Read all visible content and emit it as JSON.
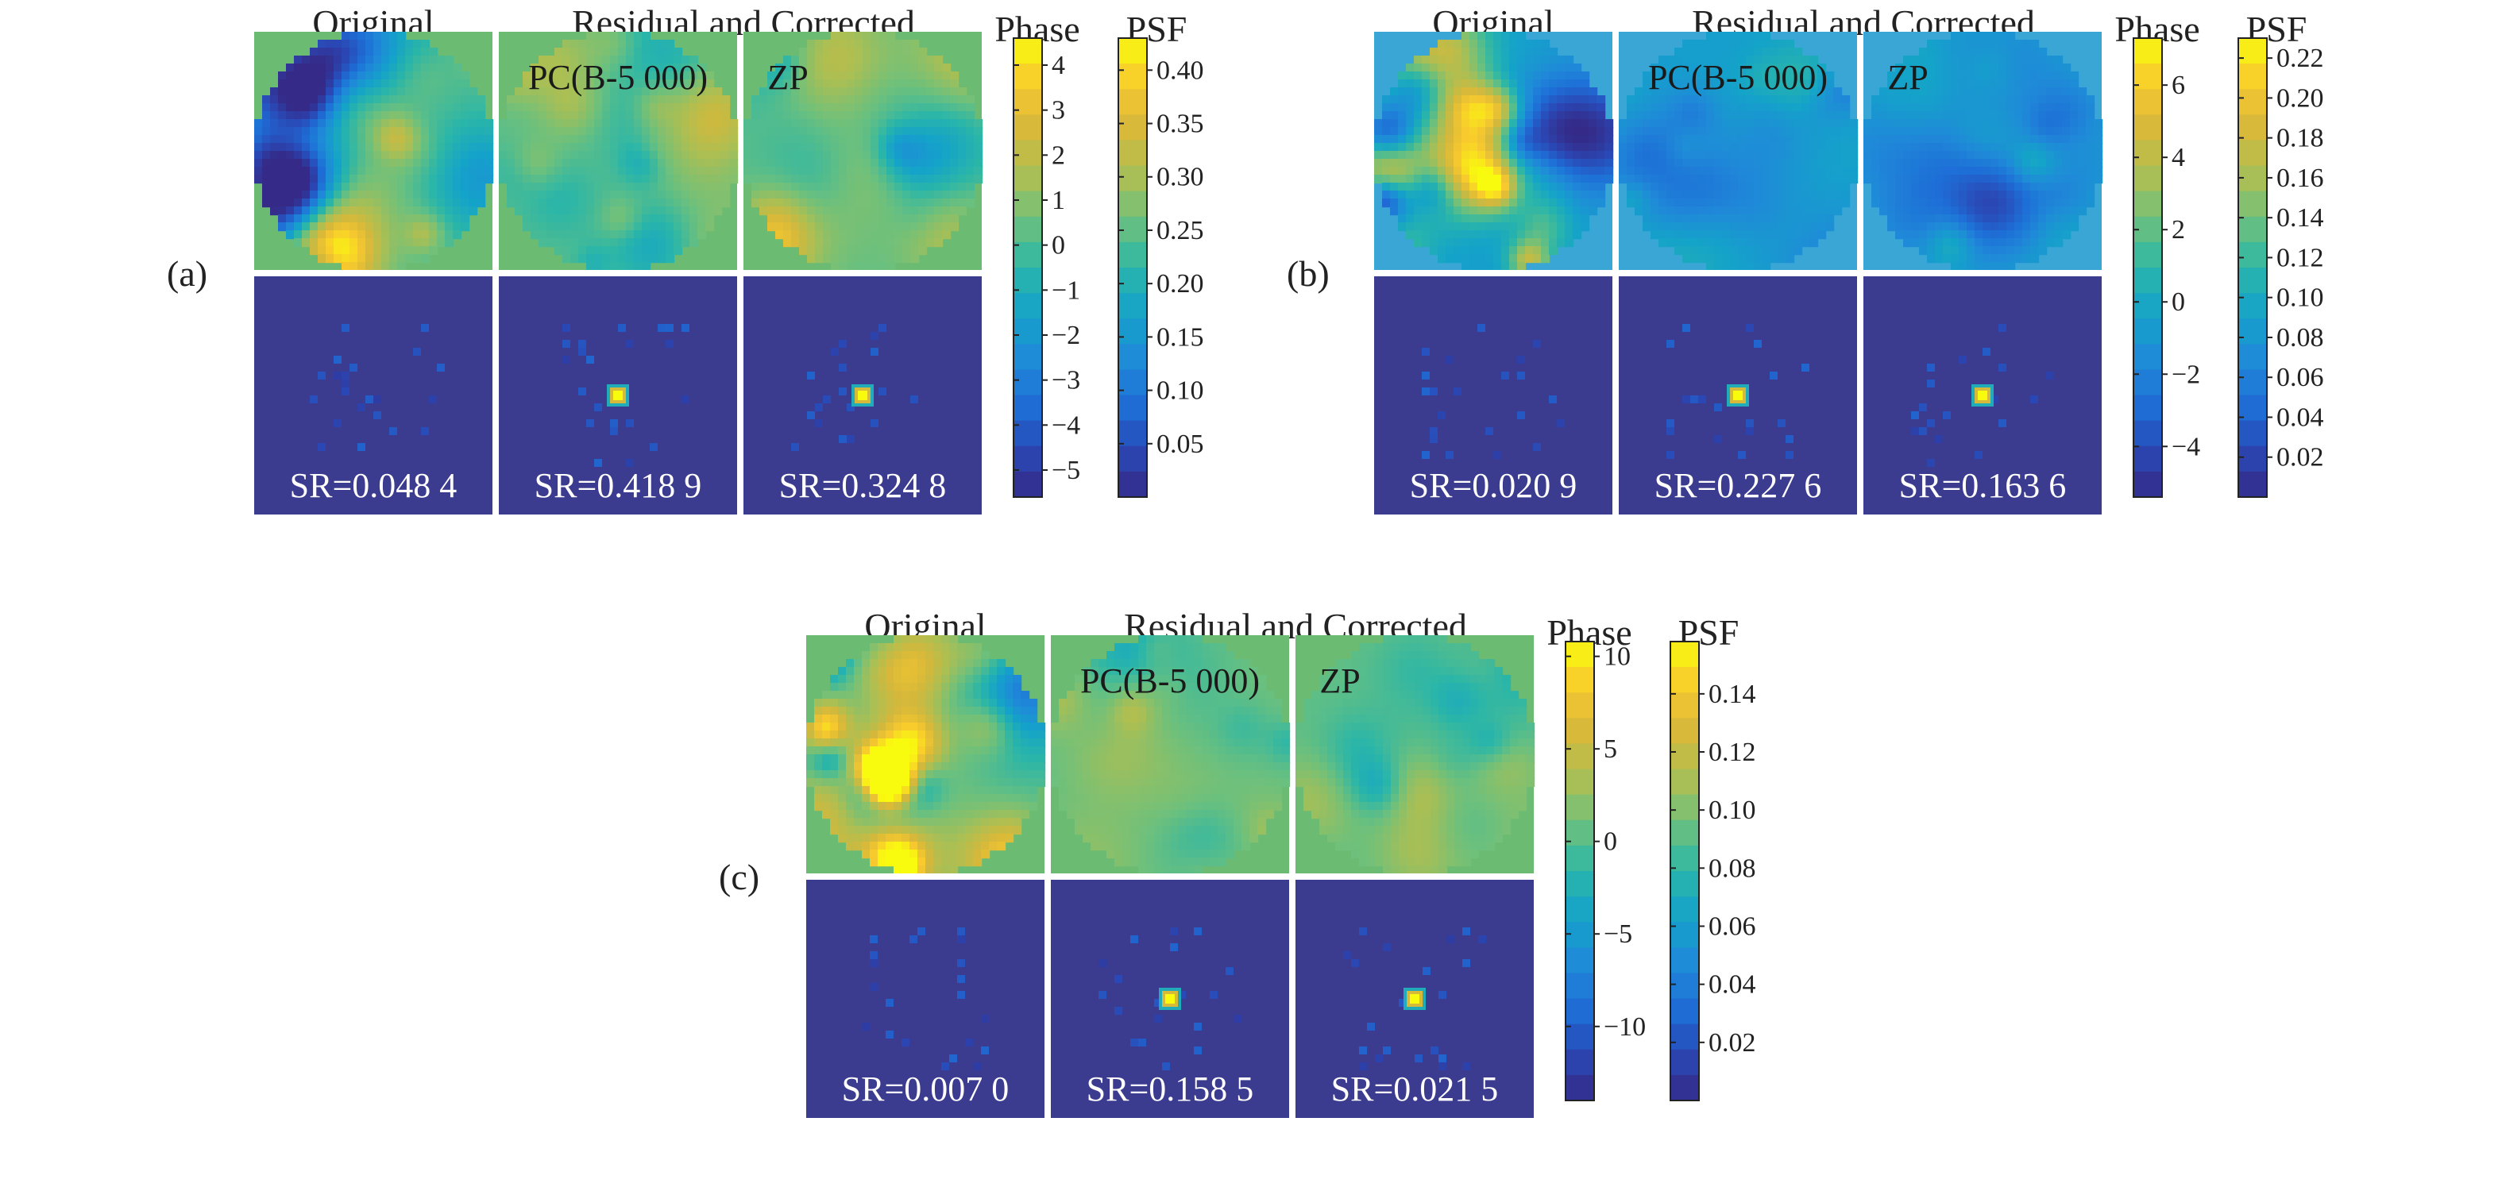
{
  "colors": {
    "psf_background": "#3b3b8f",
    "phase_background": "#6cbb73",
    "separator": "#ffffff",
    "parula": [
      "#352a87",
      "#2a48b5",
      "#1e6ed7",
      "#1f8bd8",
      "#14a3c9",
      "#2bb6a8",
      "#6cc07d",
      "#aabf54",
      "#d6b83a",
      "#f8c92e",
      "#f9fb0e"
    ]
  },
  "panels": [
    {
      "id": "a",
      "label": "(a)",
      "headers": {
        "original": "Original",
        "residual": "Residual and Corrected",
        "phase": "Phase",
        "psf": "PSF"
      },
      "methods": {
        "pc": "PC(B-5 000)",
        "zp": "ZP"
      },
      "sr": [
        "SR=0.048 4",
        "SR=0.418 9",
        "SR=0.324 8"
      ],
      "phase_colorbar": {
        "min": -5.6,
        "max": 4.6,
        "ticks": [
          "4",
          "3",
          "2",
          "1",
          "0",
          "−1",
          "−2",
          "−3",
          "−4",
          "−5"
        ],
        "tick_values": [
          4,
          3,
          2,
          1,
          0,
          -1,
          -2,
          -3,
          -4,
          -5
        ]
      },
      "psf_colorbar": {
        "min": 0.0,
        "max": 0.43,
        "ticks": [
          "0.40",
          "0.35",
          "0.30",
          "0.25",
          "0.20",
          "0.15",
          "0.10",
          "0.05"
        ],
        "tick_values": [
          0.4,
          0.35,
          0.3,
          0.25,
          0.2,
          0.15,
          0.1,
          0.05
        ]
      }
    },
    {
      "id": "b",
      "label": "(b)",
      "headers": {
        "original": "Original",
        "residual": "Residual and Corrected",
        "phase": "Phase",
        "psf": "PSF"
      },
      "methods": {
        "pc": "PC(B-5 000)",
        "zp": "ZP"
      },
      "sr": [
        "SR=0.020 9",
        "SR=0.227 6",
        "SR=0.163 6"
      ],
      "phase_colorbar": {
        "min": -5.4,
        "max": 7.3,
        "ticks": [
          "6",
          "4",
          "2",
          "0",
          "−2",
          "−4"
        ],
        "tick_values": [
          6,
          4,
          2,
          0,
          -2,
          -4
        ]
      },
      "psf_colorbar": {
        "min": 0.0,
        "max": 0.23,
        "ticks": [
          "0.22",
          "0.20",
          "0.18",
          "0.16",
          "0.14",
          "0.12",
          "0.10",
          "0.08",
          "0.06",
          "0.04",
          "0.02"
        ],
        "tick_values": [
          0.22,
          0.2,
          0.18,
          0.16,
          0.14,
          0.12,
          0.1,
          0.08,
          0.06,
          0.04,
          0.02
        ]
      }
    },
    {
      "id": "c",
      "label": "(c)",
      "headers": {
        "original": "Original",
        "residual": "Residual and Corrected",
        "phase": "Phase",
        "psf": "PSF"
      },
      "methods": {
        "pc": "PC(B-5 000)",
        "zp": "ZP"
      },
      "sr": [
        "SR=0.007 0",
        "SR=0.158 5",
        "SR=0.021 5"
      ],
      "phase_colorbar": {
        "min": -14.0,
        "max": 10.8,
        "ticks": [
          "10",
          "5",
          "0",
          "−5",
          "−10"
        ],
        "tick_values": [
          10,
          5,
          0,
          -5,
          -10
        ]
      },
      "psf_colorbar": {
        "min": 0.0,
        "max": 0.158,
        "ticks": [
          "0.14",
          "0.12",
          "0.10",
          "0.08",
          "0.06",
          "0.04",
          "0.02"
        ],
        "tick_values": [
          0.14,
          0.12,
          0.1,
          0.08,
          0.06,
          0.04,
          0.02
        ]
      }
    }
  ]
}
